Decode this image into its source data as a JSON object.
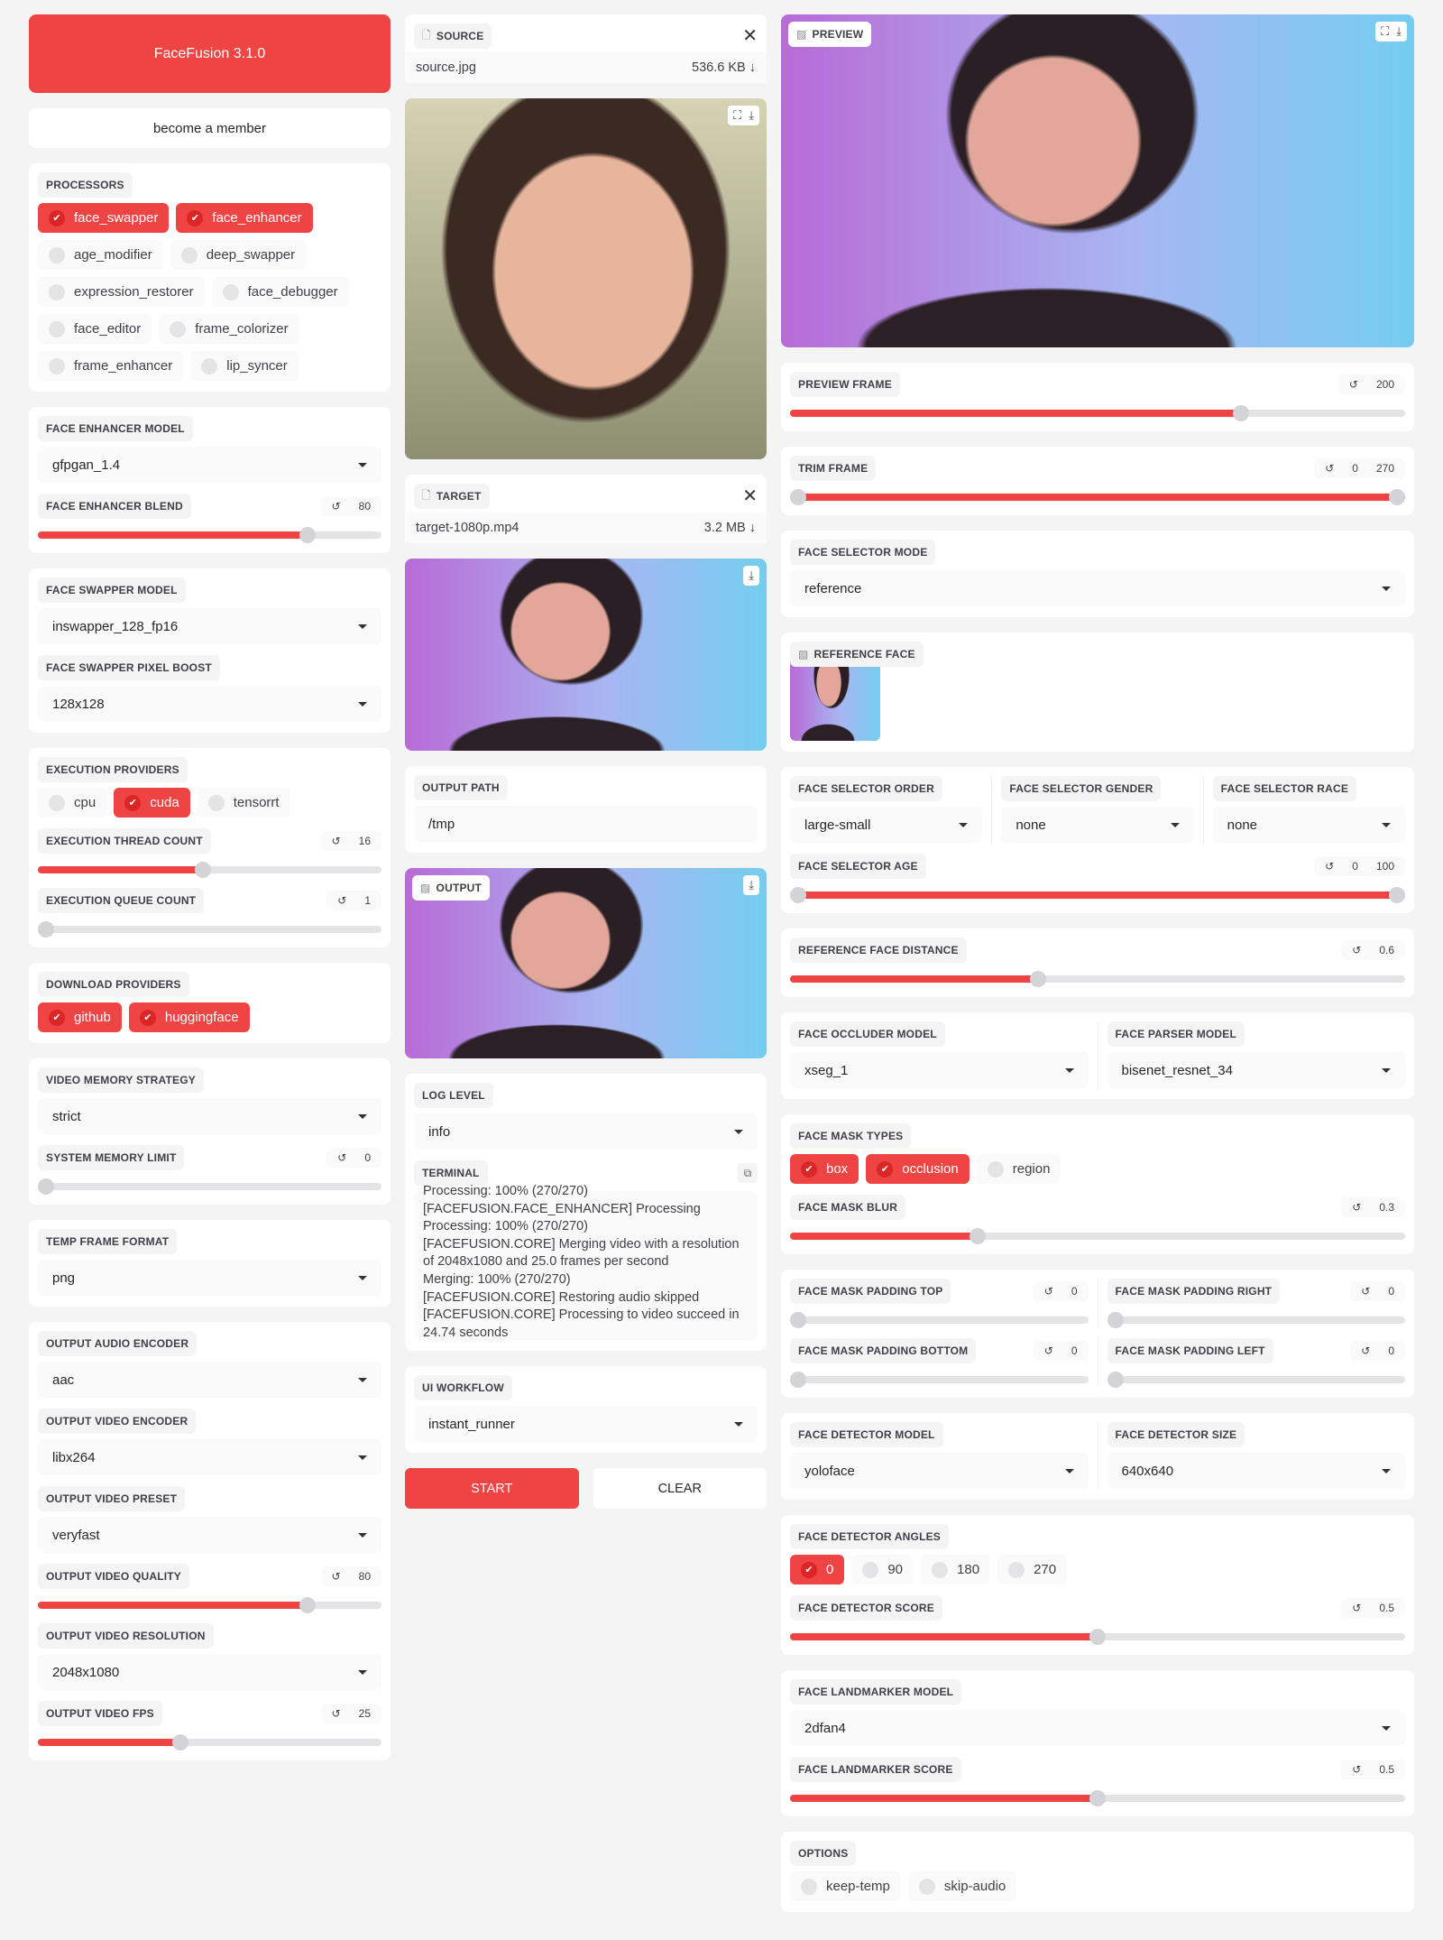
{
  "colors": {
    "accent": "#ef4444",
    "background": "#f4f4f4",
    "panel": "#ffffff"
  },
  "left": [
    {
      "type": "title",
      "label": "FaceFusion 3.1.0"
    },
    {
      "type": "link",
      "label": "become a member"
    },
    {
      "type": "panel",
      "items": [
        {
          "type": "checks",
          "label": "PROCESSORS",
          "options": [
            {
              "label": "face_swapper",
              "checked": true
            },
            {
              "label": "face_enhancer",
              "checked": true
            },
            {
              "label": "age_modifier",
              "checked": false
            },
            {
              "label": "deep_swapper",
              "checked": false
            },
            {
              "label": "expression_restorer",
              "checked": false
            },
            {
              "label": "face_debugger",
              "checked": false
            },
            {
              "label": "face_editor",
              "checked": false
            },
            {
              "label": "frame_colorizer",
              "checked": false
            },
            {
              "label": "frame_enhancer",
              "checked": false
            },
            {
              "label": "lip_syncer",
              "checked": false
            }
          ]
        }
      ]
    },
    {
      "type": "panel",
      "items": [
        {
          "type": "dropdown",
          "label": "FACE ENHANCER MODEL",
          "value": "gfpgan_1.4"
        },
        {
          "type": "slider",
          "label": "FACE ENHANCER BLEND",
          "value": "80",
          "fill": 0.8
        }
      ]
    },
    {
      "type": "panel",
      "items": [
        {
          "type": "dropdown",
          "label": "FACE SWAPPER MODEL",
          "value": "inswapper_128_fp16"
        },
        {
          "type": "dropdown",
          "label": "FACE SWAPPER PIXEL BOOST",
          "value": "128x128"
        }
      ]
    },
    {
      "type": "panel",
      "items": [
        {
          "type": "checks",
          "label": "EXECUTION PROVIDERS",
          "options": [
            {
              "label": "cpu",
              "checked": false
            },
            {
              "label": "cuda",
              "checked": true
            },
            {
              "label": "tensorrt",
              "checked": false
            }
          ]
        },
        {
          "type": "slider",
          "label": "EXECUTION THREAD COUNT",
          "value": "16",
          "fill": 0.48
        },
        {
          "type": "slider",
          "label": "EXECUTION QUEUE COUNT",
          "value": "1",
          "fill": 0
        }
      ]
    },
    {
      "type": "panel",
      "items": [
        {
          "type": "checks",
          "label": "DOWNLOAD PROVIDERS",
          "options": [
            {
              "label": "github",
              "checked": true
            },
            {
              "label": "huggingface",
              "checked": true
            }
          ]
        }
      ]
    },
    {
      "type": "panel",
      "items": [
        {
          "type": "dropdown",
          "label": "VIDEO MEMORY STRATEGY",
          "value": "strict"
        },
        {
          "type": "slider",
          "label": "SYSTEM MEMORY LIMIT",
          "value": "0",
          "fill": 0
        }
      ]
    },
    {
      "type": "panel",
      "items": [
        {
          "type": "dropdown",
          "label": "TEMP FRAME FORMAT",
          "value": "png"
        }
      ]
    },
    {
      "type": "panel",
      "items": [
        {
          "type": "dropdown",
          "label": "OUTPUT AUDIO ENCODER",
          "value": "aac"
        },
        {
          "type": "dropdown",
          "label": "OUTPUT VIDEO ENCODER",
          "value": "libx264"
        },
        {
          "type": "dropdown",
          "label": "OUTPUT VIDEO PRESET",
          "value": "veryfast"
        },
        {
          "type": "slider",
          "label": "OUTPUT VIDEO QUALITY",
          "value": "80",
          "fill": 0.8
        },
        {
          "type": "dropdown",
          "label": "OUTPUT VIDEO RESOLUTION",
          "value": "2048x1080"
        },
        {
          "type": "slider",
          "label": "OUTPUT VIDEO FPS",
          "value": "25",
          "fill": 0.41
        }
      ]
    }
  ],
  "mid": [
    {
      "type": "file",
      "label": "SOURCE",
      "filename": "source.jpg",
      "size": "536.6 KB"
    },
    {
      "type": "image",
      "tone": "source",
      "tools": [
        "fullscreen-icon",
        "download-icon"
      ]
    },
    {
      "type": "file",
      "label": "TARGET",
      "filename": "target-1080p.mp4",
      "size": "3.2 MB"
    },
    {
      "type": "image",
      "tone": "pink",
      "tools": [
        "download-icon"
      ]
    },
    {
      "type": "panel",
      "items": [
        {
          "type": "text",
          "label": "OUTPUT PATH",
          "value": "/tmp"
        }
      ]
    },
    {
      "type": "image",
      "tone": "pink",
      "label": "OUTPUT",
      "tools": [
        "download-icon"
      ]
    },
    {
      "type": "panel",
      "items": [
        {
          "type": "dropdown",
          "label": "LOG LEVEL",
          "value": "info"
        },
        {
          "type": "terminal",
          "label": "TERMINAL",
          "lines": [
            "Processing: 100% (270/270)",
            "[FACEFUSION.FACE_ENHANCER] Processing",
            "Processing: 100% (270/270)",
            "[FACEFUSION.CORE] Merging video with a resolution of 2048x1080 and 25.0 frames per second",
            "Merging: 100% (270/270)",
            "[FACEFUSION.CORE] Restoring audio skipped",
            "[FACEFUSION.CORE] Processing to video succeed in 24.74 seconds"
          ]
        }
      ]
    },
    {
      "type": "panel",
      "items": [
        {
          "type": "dropdown",
          "label": "UI WORKFLOW",
          "value": "instant_runner"
        }
      ]
    },
    {
      "type": "actions",
      "start": "START",
      "clear": "CLEAR"
    }
  ],
  "right": [
    {
      "type": "image",
      "tone": "pink",
      "label": "PREVIEW",
      "tools": [
        "fullscreen-icon",
        "download-icon"
      ]
    },
    {
      "type": "panel",
      "items": [
        {
          "type": "slider",
          "label": "PREVIEW FRAME",
          "value": "200",
          "fill": 0.74
        }
      ]
    },
    {
      "type": "panel",
      "items": [
        {
          "type": "range",
          "label": "TRIM FRAME",
          "values": [
            "0",
            "270"
          ],
          "fill": [
            0,
            1
          ]
        }
      ]
    },
    {
      "type": "panel",
      "items": [
        {
          "type": "dropdown",
          "label": "FACE SELECTOR MODE",
          "value": "reference"
        }
      ]
    },
    {
      "type": "panel",
      "items": [
        {
          "type": "reference",
          "label": "REFERENCE FACE"
        }
      ]
    },
    {
      "type": "panel",
      "items": [
        {
          "type": "row",
          "items": [
            {
              "type": "dropdown",
              "label": "FACE SELECTOR ORDER",
              "value": "large-small"
            },
            {
              "type": "dropdown",
              "label": "FACE SELECTOR GENDER",
              "value": "none"
            },
            {
              "type": "dropdown",
              "label": "FACE SELECTOR RACE",
              "value": "none"
            }
          ]
        },
        {
          "type": "range",
          "label": "FACE SELECTOR AGE",
          "values": [
            "0",
            "100"
          ],
          "fill": [
            0,
            1
          ]
        }
      ]
    },
    {
      "type": "panel",
      "items": [
        {
          "type": "slider",
          "label": "REFERENCE FACE DISTANCE",
          "value": "0.6",
          "fill": 0.4
        }
      ]
    },
    {
      "type": "panel",
      "items": [
        {
          "type": "row",
          "items": [
            {
              "type": "dropdown",
              "label": "FACE OCCLUDER MODEL",
              "value": "xseg_1"
            },
            {
              "type": "dropdown",
              "label": "FACE PARSER MODEL",
              "value": "bisenet_resnet_34"
            }
          ]
        }
      ]
    },
    {
      "type": "panel",
      "items": [
        {
          "type": "checks",
          "label": "FACE MASK TYPES",
          "options": [
            {
              "label": "box",
              "checked": true
            },
            {
              "label": "occlusion",
              "checked": true
            },
            {
              "label": "region",
              "checked": false
            }
          ]
        },
        {
          "type": "slider",
          "label": "FACE MASK BLUR",
          "value": "0.3",
          "fill": 0.3
        }
      ]
    },
    {
      "type": "panel",
      "items": [
        {
          "type": "row",
          "items": [
            {
              "type": "slider",
              "label": "FACE MASK PADDING TOP",
              "value": "0",
              "fill": 0
            },
            {
              "type": "slider",
              "label": "FACE MASK PADDING RIGHT",
              "value": "0",
              "fill": 0
            }
          ]
        },
        {
          "type": "row",
          "items": [
            {
              "type": "slider",
              "label": "FACE MASK PADDING BOTTOM",
              "value": "0",
              "fill": 0
            },
            {
              "type": "slider",
              "label": "FACE MASK PADDING LEFT",
              "value": "0",
              "fill": 0
            }
          ]
        }
      ]
    },
    {
      "type": "panel",
      "items": [
        {
          "type": "row",
          "items": [
            {
              "type": "dropdown",
              "label": "FACE DETECTOR MODEL",
              "value": "yoloface"
            },
            {
              "type": "dropdown",
              "label": "FACE DETECTOR SIZE",
              "value": "640x640"
            }
          ]
        }
      ]
    },
    {
      "type": "panel",
      "items": [
        {
          "type": "checks",
          "label": "FACE DETECTOR ANGLES",
          "options": [
            {
              "label": "0",
              "checked": true
            },
            {
              "label": "90",
              "checked": false
            },
            {
              "label": "180",
              "checked": false
            },
            {
              "label": "270",
              "checked": false
            }
          ]
        },
        {
          "type": "slider",
          "label": "FACE DETECTOR SCORE",
          "value": "0.5",
          "fill": 0.5
        }
      ]
    },
    {
      "type": "panel",
      "items": [
        {
          "type": "dropdown",
          "label": "FACE LANDMARKER MODEL",
          "value": "2dfan4"
        },
        {
          "type": "slider",
          "label": "FACE LANDMARKER SCORE",
          "value": "0.5",
          "fill": 0.5
        }
      ]
    },
    {
      "type": "panel",
      "items": [
        {
          "type": "checks",
          "label": "OPTIONS",
          "options": [
            {
              "label": "keep-temp",
              "checked": false
            },
            {
              "label": "skip-audio",
              "checked": false
            }
          ]
        }
      ]
    }
  ]
}
